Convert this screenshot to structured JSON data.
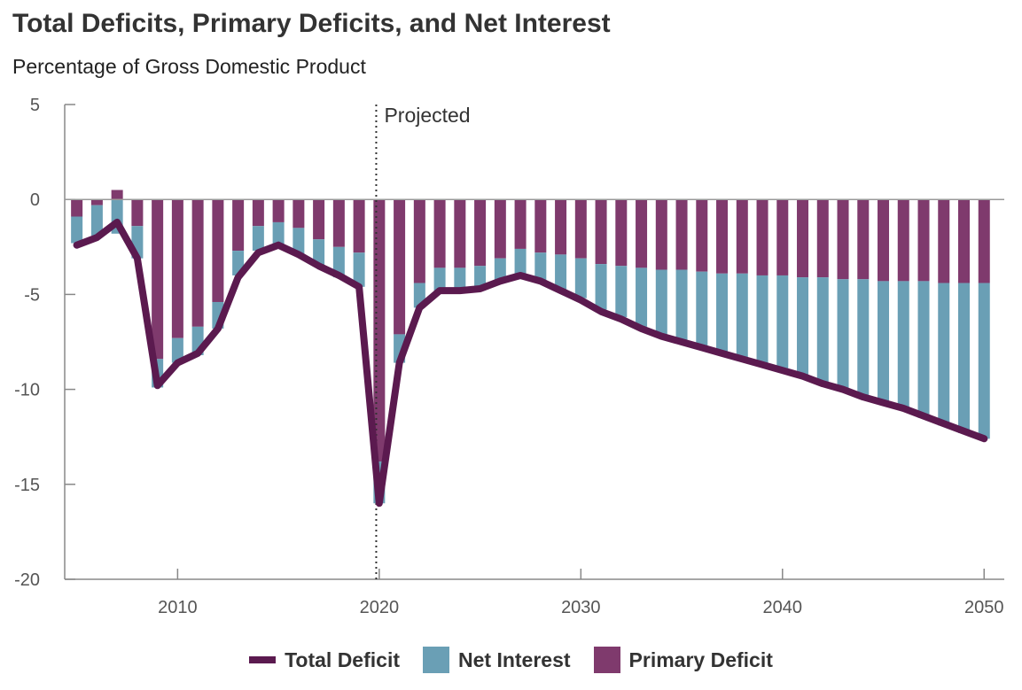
{
  "title": "Total Deficits, Primary Deficits, and Net Interest",
  "subtitle": "Percentage of Gross Domestic Product",
  "colors": {
    "total_deficit": "#5b1a4f",
    "net_interest": "#6a9fb5",
    "primary_deficit": "#7f3a6d",
    "axis": "#888888",
    "zero_line": "#999999"
  },
  "legend": {
    "total_deficit": "Total Deficit",
    "net_interest": "Net Interest",
    "primary_deficit": "Primary Deficit"
  },
  "chart_data": {
    "type": "bar",
    "title": "Total Deficits, Primary Deficits, and Net Interest",
    "subtitle": "Percentage of Gross Domestic Product",
    "xlabel": "",
    "ylabel": "",
    "ylim": [
      -20,
      5
    ],
    "xlim": [
      2004.4,
      2051
    ],
    "x_ticks": [
      2010,
      2020,
      2030,
      2040,
      2050
    ],
    "y_ticks": [
      5,
      0,
      -5,
      -10,
      -15,
      -20
    ],
    "annotation": {
      "x": 2019.85,
      "label": "Projected"
    },
    "years": [
      2005,
      2006,
      2007,
      2008,
      2009,
      2010,
      2011,
      2012,
      2013,
      2014,
      2015,
      2016,
      2017,
      2018,
      2019,
      2020,
      2021,
      2022,
      2023,
      2024,
      2025,
      2026,
      2027,
      2028,
      2029,
      2030,
      2031,
      2032,
      2033,
      2034,
      2035,
      2036,
      2037,
      2038,
      2039,
      2040,
      2041,
      2042,
      2043,
      2044,
      2045,
      2046,
      2047,
      2048,
      2049,
      2050
    ],
    "series": [
      {
        "name": "Primary Deficit",
        "type": "bar",
        "values": [
          -0.9,
          -0.3,
          0.5,
          -1.4,
          -8.4,
          -7.3,
          -6.7,
          -5.4,
          -2.7,
          -1.4,
          -1.2,
          -1.5,
          -2.1,
          -2.5,
          -2.8,
          -13.8,
          -7.1,
          -4.4,
          -3.6,
          -3.6,
          -3.5,
          -3.1,
          -2.6,
          -2.8,
          -2.9,
          -3.1,
          -3.4,
          -3.5,
          -3.6,
          -3.7,
          -3.7,
          -3.8,
          -3.9,
          -3.9,
          -4.0,
          -4.0,
          -4.1,
          -4.1,
          -4.2,
          -4.2,
          -4.3,
          -4.3,
          -4.3,
          -4.4,
          -4.4,
          -4.4
        ]
      },
      {
        "name": "Net Interest",
        "type": "bar",
        "values": [
          -1.4,
          -1.6,
          -1.8,
          -1.7,
          -1.5,
          -1.3,
          -1.5,
          -1.4,
          -1.3,
          -1.3,
          -1.3,
          -1.4,
          -1.4,
          -1.6,
          -1.8,
          -2.2,
          -1.5,
          -1.3,
          -1.2,
          -1.2,
          -1.3,
          -1.3,
          -1.4,
          -1.6,
          -1.9,
          -2.1,
          -2.4,
          -2.7,
          -3.1,
          -3.4,
          -3.7,
          -3.9,
          -4.2,
          -4.5,
          -4.7,
          -5.0,
          -5.2,
          -5.6,
          -5.8,
          -6.2,
          -6.4,
          -6.7,
          -7.2,
          -7.5,
          -7.9,
          -8.2
        ]
      },
      {
        "name": "Total Deficit",
        "type": "line",
        "values": [
          -2.4,
          -2.0,
          -1.2,
          -3.1,
          -9.8,
          -8.6,
          -8.1,
          -6.8,
          -4.1,
          -2.8,
          -2.4,
          -2.9,
          -3.5,
          -4.0,
          -4.6,
          -16.0,
          -8.6,
          -5.7,
          -4.8,
          -4.8,
          -4.7,
          -4.3,
          -4.0,
          -4.3,
          -4.8,
          -5.3,
          -5.9,
          -6.3,
          -6.8,
          -7.2,
          -7.5,
          -7.8,
          -8.1,
          -8.4,
          -8.7,
          -9.0,
          -9.3,
          -9.7,
          -10.0,
          -10.4,
          -10.7,
          -11.0,
          -11.4,
          -11.8,
          -12.2,
          -12.6
        ]
      }
    ]
  }
}
